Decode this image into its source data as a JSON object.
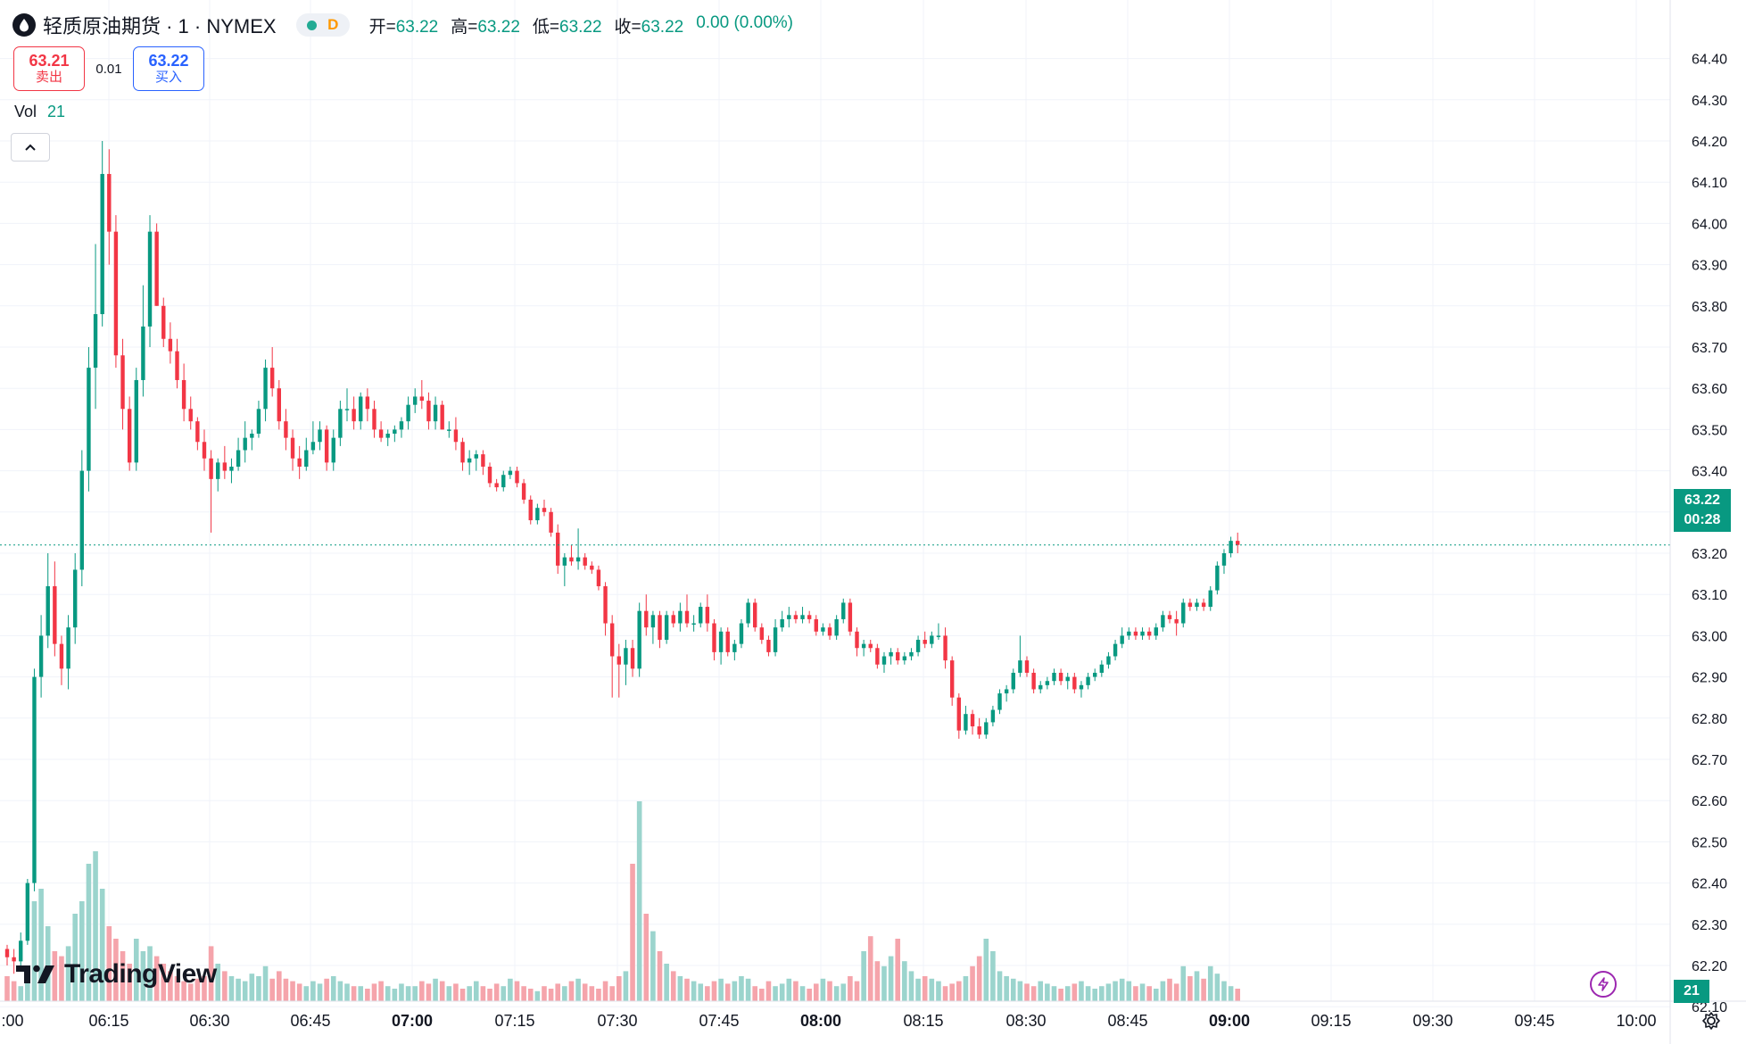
{
  "header": {
    "title": "轻质原油期货 · 1 · NYMEX",
    "interval_badge": "D",
    "ohlc": [
      {
        "key": "开=",
        "value": "63.22"
      },
      {
        "key": "高=",
        "value": "63.22"
      },
      {
        "key": "低=",
        "value": "63.22"
      },
      {
        "key": "收=",
        "value": "63.22"
      }
    ],
    "change": "0.00 (0.00%)"
  },
  "trade": {
    "sell_price": "63.21",
    "sell_label": "卖出",
    "spread": "0.01",
    "buy_price": "63.22",
    "buy_label": "买入"
  },
  "volume_legend": {
    "label": "Vol",
    "value": "21"
  },
  "brand": "TradingView",
  "last_price_tag": {
    "price": "63.22",
    "countdown": "00:28"
  },
  "volume_tag": "21",
  "colors": {
    "up": "#089981",
    "down": "#f23645",
    "vol_up": "#9bd4cd",
    "vol_down": "#f5a4ab"
  },
  "chart_data": {
    "type": "candlestick",
    "y_ticks": [
      "64.40",
      "64.30",
      "64.20",
      "64.10",
      "64.00",
      "63.90",
      "63.80",
      "63.70",
      "63.60",
      "63.50",
      "63.40",
      "63.30",
      "63.20",
      "63.10",
      "63.00",
      "62.90",
      "62.80",
      "62.70",
      "62.60",
      "62.50",
      "62.40",
      "62.30",
      "62.20",
      "62.10"
    ],
    "x_ticks": [
      ":00",
      "06:15",
      "06:30",
      "06:45",
      "07:00",
      "07:15",
      "07:30",
      "07:45",
      "08:00",
      "08:15",
      "08:30",
      "08:45",
      "09:00",
      "09:15",
      "09:30",
      "09:45",
      "10:00"
    ],
    "bold_x_ticks": [
      "07:00",
      "08:00",
      "09:00"
    ],
    "ylim": [
      62.05,
      64.42
    ],
    "last_price": 63.22,
    "interval": "1 minute",
    "candles": [
      [
        62.24,
        62.25,
        62.2,
        62.22
      ],
      [
        62.22,
        62.24,
        62.18,
        62.21
      ],
      [
        62.21,
        62.28,
        62.2,
        62.26
      ],
      [
        62.26,
        62.41,
        62.25,
        62.4
      ],
      [
        62.4,
        62.92,
        62.38,
        62.9
      ],
      [
        62.9,
        63.05,
        62.85,
        63.0
      ],
      [
        63.0,
        63.2,
        62.97,
        63.12
      ],
      [
        63.12,
        63.18,
        62.95,
        62.98
      ],
      [
        62.98,
        63.0,
        62.88,
        62.92
      ],
      [
        62.92,
        63.05,
        62.87,
        63.02
      ],
      [
        63.02,
        63.2,
        62.98,
        63.16
      ],
      [
        63.16,
        63.45,
        63.12,
        63.4
      ],
      [
        63.4,
        63.7,
        63.35,
        63.65
      ],
      [
        63.65,
        63.95,
        63.55,
        63.78
      ],
      [
        63.78,
        64.2,
        63.75,
        64.12
      ],
      [
        64.12,
        64.18,
        63.9,
        63.98
      ],
      [
        63.98,
        64.02,
        63.65,
        63.68
      ],
      [
        63.68,
        63.72,
        63.5,
        63.55
      ],
      [
        63.55,
        63.58,
        63.4,
        63.42
      ],
      [
        63.42,
        63.65,
        63.4,
        63.62
      ],
      [
        63.62,
        63.85,
        63.58,
        63.75
      ],
      [
        63.75,
        64.02,
        63.7,
        63.98
      ],
      [
        63.98,
        64.0,
        63.8,
        63.8
      ],
      [
        63.8,
        63.82,
        63.7,
        63.72
      ],
      [
        63.72,
        63.76,
        63.66,
        63.69
      ],
      [
        63.69,
        63.72,
        63.6,
        63.62
      ],
      [
        63.62,
        63.66,
        63.52,
        63.55
      ],
      [
        63.55,
        63.58,
        63.5,
        63.52
      ],
      [
        63.52,
        63.53,
        63.45,
        63.47
      ],
      [
        63.47,
        63.5,
        63.4,
        63.43
      ],
      [
        63.43,
        63.45,
        63.25,
        63.38
      ],
      [
        63.38,
        63.43,
        63.35,
        63.42
      ],
      [
        63.42,
        63.46,
        63.38,
        63.4
      ],
      [
        63.4,
        63.43,
        63.37,
        63.41
      ],
      [
        63.41,
        63.48,
        63.4,
        63.45
      ],
      [
        63.45,
        63.52,
        63.42,
        63.48
      ],
      [
        63.48,
        63.5,
        63.45,
        63.49
      ],
      [
        63.49,
        63.57,
        63.48,
        63.55
      ],
      [
        63.55,
        63.67,
        63.52,
        63.65
      ],
      [
        63.65,
        63.7,
        63.58,
        63.6
      ],
      [
        63.6,
        63.62,
        63.5,
        63.52
      ],
      [
        63.52,
        63.55,
        63.45,
        63.48
      ],
      [
        63.48,
        63.5,
        63.4,
        63.43
      ],
      [
        63.43,
        63.46,
        63.38,
        63.41
      ],
      [
        63.41,
        63.48,
        63.4,
        63.45
      ],
      [
        63.45,
        63.52,
        63.44,
        63.47
      ],
      [
        63.47,
        63.52,
        63.45,
        63.5
      ],
      [
        63.5,
        63.51,
        63.4,
        63.42
      ],
      [
        63.42,
        63.5,
        63.4,
        63.48
      ],
      [
        63.48,
        63.57,
        63.46,
        63.55
      ],
      [
        63.55,
        63.6,
        63.52,
        63.55
      ],
      [
        63.55,
        63.58,
        63.5,
        63.52
      ],
      [
        63.52,
        63.59,
        63.5,
        63.58
      ],
      [
        63.58,
        63.6,
        63.52,
        63.55
      ],
      [
        63.55,
        63.57,
        63.48,
        63.5
      ],
      [
        63.5,
        63.52,
        63.47,
        63.48
      ],
      [
        63.48,
        63.5,
        63.46,
        63.49
      ],
      [
        63.49,
        63.51,
        63.47,
        63.5
      ],
      [
        63.5,
        63.53,
        63.48,
        63.52
      ],
      [
        63.52,
        63.58,
        63.5,
        63.56
      ],
      [
        63.56,
        63.6,
        63.54,
        63.58
      ],
      [
        63.58,
        63.62,
        63.55,
        63.57
      ],
      [
        63.57,
        63.59,
        63.5,
        63.52
      ],
      [
        63.52,
        63.58,
        63.5,
        63.56
      ],
      [
        63.56,
        63.57,
        63.5,
        63.5
      ],
      [
        63.5,
        63.52,
        63.48,
        63.5
      ],
      [
        63.5,
        63.53,
        63.45,
        63.47
      ],
      [
        63.47,
        63.48,
        63.4,
        63.42
      ],
      [
        63.42,
        63.45,
        63.39,
        63.43
      ],
      [
        63.43,
        63.45,
        63.4,
        63.44
      ],
      [
        63.44,
        63.45,
        63.39,
        63.41
      ],
      [
        63.41,
        63.42,
        63.36,
        63.37
      ],
      [
        63.37,
        63.38,
        63.35,
        63.36
      ],
      [
        63.36,
        63.4,
        63.35,
        63.39
      ],
      [
        63.39,
        63.41,
        63.38,
        63.4
      ],
      [
        63.4,
        63.41,
        63.36,
        63.37
      ],
      [
        63.37,
        63.38,
        63.32,
        63.33
      ],
      [
        63.33,
        63.34,
        63.27,
        63.28
      ],
      [
        63.28,
        63.32,
        63.27,
        63.31
      ],
      [
        63.31,
        63.33,
        63.29,
        63.3
      ],
      [
        63.3,
        63.31,
        63.24,
        63.25
      ],
      [
        63.25,
        63.27,
        63.15,
        63.17
      ],
      [
        63.17,
        63.2,
        63.12,
        63.19
      ],
      [
        63.19,
        63.22,
        63.17,
        63.18
      ],
      [
        63.18,
        63.26,
        63.16,
        63.19
      ],
      [
        63.19,
        63.2,
        63.16,
        63.17
      ],
      [
        63.17,
        63.18,
        63.15,
        63.16
      ],
      [
        63.16,
        63.17,
        63.11,
        63.12
      ],
      [
        63.12,
        63.13,
        63.0,
        63.03
      ],
      [
        63.03,
        63.05,
        62.85,
        62.95
      ],
      [
        62.95,
        62.98,
        62.85,
        62.93
      ],
      [
        62.93,
        62.99,
        62.88,
        62.97
      ],
      [
        62.97,
        62.99,
        62.9,
        62.92
      ],
      [
        62.92,
        63.08,
        62.9,
        63.06
      ],
      [
        63.06,
        63.1,
        63.0,
        63.02
      ],
      [
        63.02,
        63.06,
        62.98,
        63.05
      ],
      [
        63.05,
        63.06,
        62.97,
        62.99
      ],
      [
        62.99,
        63.06,
        62.98,
        63.05
      ],
      [
        63.05,
        63.06,
        63.02,
        63.03
      ],
      [
        63.03,
        63.08,
        63.01,
        63.06
      ],
      [
        63.06,
        63.1,
        63.02,
        63.03
      ],
      [
        63.03,
        63.05,
        63.01,
        63.03
      ],
      [
        63.03,
        63.08,
        63.02,
        63.07
      ],
      [
        63.07,
        63.1,
        63.01,
        63.03
      ],
      [
        63.03,
        63.04,
        62.94,
        62.96
      ],
      [
        62.96,
        63.02,
        62.93,
        63.01
      ],
      [
        63.01,
        63.02,
        62.95,
        62.96
      ],
      [
        62.96,
        62.99,
        62.94,
        62.98
      ],
      [
        62.98,
        63.04,
        62.97,
        63.03
      ],
      [
        63.03,
        63.09,
        63.02,
        63.08
      ],
      [
        63.08,
        63.09,
        63.01,
        63.02
      ],
      [
        63.02,
        63.03,
        62.98,
        62.99
      ],
      [
        62.99,
        63.0,
        62.95,
        62.96
      ],
      [
        62.96,
        63.04,
        62.95,
        63.02
      ],
      [
        63.02,
        63.06,
        63.01,
        63.04
      ],
      [
        63.04,
        63.07,
        63.02,
        63.05
      ],
      [
        63.05,
        63.06,
        63.03,
        63.04
      ],
      [
        63.04,
        63.07,
        63.03,
        63.05
      ],
      [
        63.05,
        63.06,
        63.03,
        63.04
      ],
      [
        63.04,
        63.05,
        63.0,
        63.01
      ],
      [
        63.01,
        63.03,
        63.0,
        63.02
      ],
      [
        63.02,
        63.03,
        62.99,
        63.0
      ],
      [
        63.0,
        63.05,
        62.99,
        63.04
      ],
      [
        63.04,
        63.09,
        63.03,
        63.08
      ],
      [
        63.08,
        63.09,
        63.0,
        63.01
      ],
      [
        63.01,
        63.02,
        62.95,
        62.97
      ],
      [
        62.97,
        62.99,
        62.95,
        62.98
      ],
      [
        62.98,
        62.99,
        62.96,
        62.97
      ],
      [
        62.97,
        62.98,
        62.92,
        62.93
      ],
      [
        62.93,
        62.96,
        62.91,
        62.95
      ],
      [
        62.95,
        62.97,
        62.93,
        62.96
      ],
      [
        62.96,
        62.97,
        62.93,
        62.94
      ],
      [
        62.94,
        62.96,
        62.93,
        62.95
      ],
      [
        62.95,
        62.97,
        62.94,
        62.96
      ],
      [
        62.96,
        63.0,
        62.95,
        62.99
      ],
      [
        62.99,
        63.01,
        62.97,
        62.98
      ],
      [
        62.98,
        63.01,
        62.97,
        63.0
      ],
      [
        63.0,
        63.03,
        62.99,
        63.0
      ],
      [
        63.0,
        63.02,
        62.92,
        62.94
      ],
      [
        62.94,
        62.95,
        62.83,
        62.85
      ],
      [
        62.85,
        62.86,
        62.75,
        62.77
      ],
      [
        62.77,
        62.83,
        62.76,
        62.81
      ],
      [
        62.81,
        62.82,
        62.76,
        62.78
      ],
      [
        62.78,
        62.8,
        62.75,
        62.76
      ],
      [
        62.76,
        62.8,
        62.75,
        62.79
      ],
      [
        62.79,
        62.83,
        62.78,
        62.82
      ],
      [
        62.82,
        62.87,
        62.81,
        62.86
      ],
      [
        62.86,
        62.88,
        62.84,
        62.87
      ],
      [
        62.87,
        62.92,
        62.86,
        62.91
      ],
      [
        62.91,
        63.0,
        62.9,
        62.94
      ],
      [
        62.94,
        62.95,
        62.9,
        62.91
      ],
      [
        62.91,
        62.92,
        62.86,
        62.87
      ],
      [
        62.87,
        62.89,
        62.86,
        62.88
      ],
      [
        62.88,
        62.9,
        62.87,
        62.89
      ],
      [
        62.89,
        62.92,
        62.88,
        62.91
      ],
      [
        62.91,
        62.92,
        62.88,
        62.89
      ],
      [
        62.89,
        62.91,
        62.87,
        62.9
      ],
      [
        62.9,
        62.91,
        62.86,
        62.87
      ],
      [
        62.87,
        62.89,
        62.85,
        62.88
      ],
      [
        62.88,
        62.91,
        62.87,
        62.9
      ],
      [
        62.9,
        62.92,
        62.89,
        62.91
      ],
      [
        62.91,
        62.94,
        62.9,
        62.93
      ],
      [
        62.93,
        62.96,
        62.92,
        62.95
      ],
      [
        62.95,
        62.99,
        62.94,
        62.98
      ],
      [
        62.98,
        63.02,
        62.97,
        63.0
      ],
      [
        63.0,
        63.02,
        62.99,
        63.01
      ],
      [
        63.01,
        63.02,
        62.99,
        63.0
      ],
      [
        63.0,
        63.02,
        62.99,
        63.01
      ],
      [
        63.01,
        63.02,
        62.99,
        63.0
      ],
      [
        63.0,
        63.03,
        62.99,
        63.02
      ],
      [
        63.02,
        63.06,
        63.01,
        63.05
      ],
      [
        63.05,
        63.06,
        63.03,
        63.04
      ],
      [
        63.04,
        63.06,
        63.0,
        63.03
      ],
      [
        63.03,
        63.09,
        63.02,
        63.08
      ],
      [
        63.08,
        63.09,
        63.06,
        63.07
      ],
      [
        63.07,
        63.09,
        63.06,
        63.08
      ],
      [
        63.08,
        63.09,
        63.06,
        63.07
      ],
      [
        63.07,
        63.12,
        63.06,
        63.11
      ],
      [
        63.11,
        63.18,
        63.1,
        63.17
      ],
      [
        63.17,
        63.21,
        63.15,
        63.2
      ],
      [
        63.2,
        63.24,
        63.19,
        63.23
      ],
      [
        63.23,
        63.25,
        63.2,
        63.22
      ]
    ],
    "volumes": [
      10,
      8,
      6,
      12,
      40,
      45,
      30,
      20,
      18,
      22,
      35,
      40,
      55,
      60,
      45,
      30,
      25,
      20,
      15,
      25,
      20,
      22,
      18,
      15,
      12,
      10,
      8,
      7,
      9,
      10,
      22,
      15,
      12,
      10,
      9,
      8,
      11,
      10,
      14,
      9,
      12,
      9,
      8,
      7,
      6,
      8,
      7,
      9,
      10,
      8,
      7,
      6,
      6,
      5,
      7,
      8,
      6,
      5,
      7,
      6,
      6,
      8,
      7,
      9,
      8,
      6,
      7,
      5,
      6,
      8,
      6,
      5,
      7,
      6,
      9,
      8,
      6,
      5,
      4,
      6,
      5,
      7,
      6,
      8,
      9,
      7,
      6,
      5,
      8,
      6,
      10,
      12,
      55,
      80,
      35,
      28,
      20,
      15,
      12,
      10,
      9,
      8,
      7,
      6,
      8,
      9,
      7,
      8,
      10,
      9,
      6,
      5,
      8,
      6,
      7,
      9,
      8,
      6,
      5,
      7,
      9,
      8,
      6,
      7,
      10,
      8,
      20,
      26,
      16,
      14,
      18,
      25,
      16,
      12,
      9,
      10,
      9,
      8,
      6,
      7,
      8,
      10,
      14,
      18,
      25,
      20,
      12,
      10,
      9,
      8,
      7,
      6,
      8,
      7,
      6,
      5,
      6,
      7,
      8,
      6,
      5,
      6,
      7,
      8,
      9,
      8,
      6,
      7,
      6,
      5,
      8,
      9,
      7,
      14,
      10,
      12,
      9,
      14,
      11,
      8,
      6,
      5
    ],
    "up_volume_color_index_rule": "volume color follows candle direction"
  }
}
